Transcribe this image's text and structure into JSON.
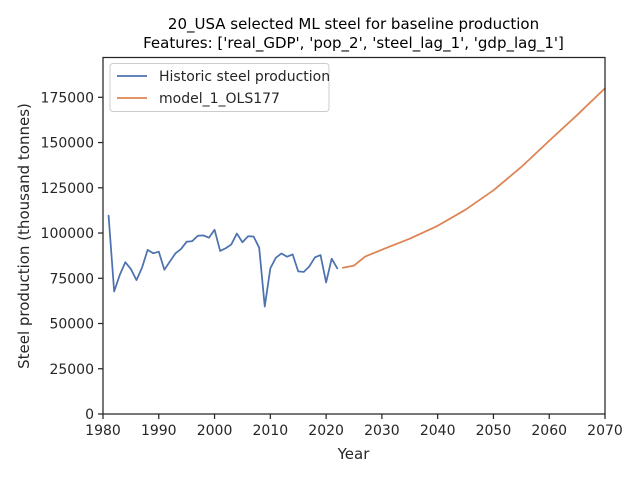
{
  "chart_data": {
    "type": "line",
    "title": "20_USA selected ML steel for baseline production",
    "subtitle": "Features: ['real_GDP', 'pop_2', 'steel_lag_1', 'gdp_lag_1']",
    "xlabel": "Year",
    "ylabel": "Steel production (thousand tonnes)",
    "xlim": [
      1980,
      2070
    ],
    "ylim": [
      0,
      197000
    ],
    "xticks": [
      1980,
      1990,
      2000,
      2010,
      2020,
      2030,
      2040,
      2050,
      2060,
      2070
    ],
    "yticks": [
      0,
      25000,
      50000,
      75000,
      100000,
      125000,
      150000,
      175000
    ],
    "grid": false,
    "legend_position": "top-left",
    "series": [
      {
        "name": "Historic steel production",
        "color": "#4c72b0",
        "x": [
          1981,
          1982,
          1983,
          1984,
          1985,
          1986,
          1987,
          1988,
          1989,
          1990,
          1991,
          1992,
          1993,
          1994,
          1995,
          1996,
          1997,
          1998,
          1999,
          2000,
          2001,
          2002,
          2003,
          2004,
          2005,
          2006,
          2007,
          2008,
          2009,
          2010,
          2011,
          2012,
          2013,
          2014,
          2015,
          2016,
          2017,
          2018,
          2019,
          2020,
          2021,
          2022
        ],
        "values": [
          109600,
          67700,
          76800,
          83900,
          80100,
          74000,
          80900,
          90700,
          88800,
          89700,
          79700,
          84300,
          88800,
          91200,
          95200,
          95500,
          98500,
          98700,
          97400,
          101800,
          90100,
          91600,
          93700,
          99700,
          94900,
          98200,
          98100,
          91900,
          59400,
          80500,
          86400,
          88700,
          86900,
          88200,
          78800,
          78500,
          81600,
          86600,
          87800,
          72700,
          85800,
          80500
        ]
      },
      {
        "name": "model_1_OLS177",
        "color": "#dd8452",
        "x": [
          2023,
          2025,
          2027,
          2030,
          2035,
          2040,
          2045,
          2050,
          2055,
          2060,
          2065,
          2070
        ],
        "values": [
          80800,
          82000,
          87000,
          90800,
          96900,
          104000,
          112900,
          123600,
          136500,
          151000,
          165200,
          180000
        ]
      }
    ]
  }
}
